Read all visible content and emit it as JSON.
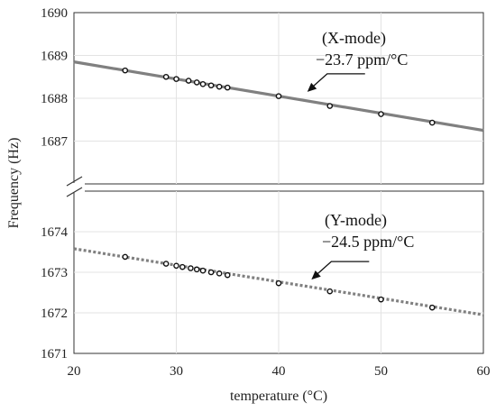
{
  "chart_data": {
    "type": "scatter",
    "xlabel": "temperature (°C)",
    "ylabel": "Frequency (Hz)",
    "xlim": [
      20,
      60
    ],
    "x_ticks": [
      20,
      30,
      40,
      50,
      60
    ],
    "x_tick_labels": [
      "20",
      "30",
      "40",
      "50",
      "60"
    ],
    "grid": true,
    "axis_break": "broken y-axis between 1687 and 1674",
    "panels": [
      {
        "ylim": [
          1686,
          1690
        ],
        "y_ticks": [
          1687,
          1688,
          1689,
          1690
        ],
        "y_tick_labels": [
          "1687",
          "1688",
          "1689",
          "1690"
        ],
        "series": {
          "fit_line": {
            "x": [
              20,
              60
            ],
            "y": [
              1688.85,
              1687.25
            ],
            "style": "solid",
            "color": "#808080"
          },
          "points": {
            "x": [
              25,
              29,
              30,
              31.2,
              32,
              32.6,
              33.4,
              34.2,
              35,
              40,
              45,
              50,
              55
            ],
            "y": [
              1688.65,
              1688.5,
              1688.45,
              1688.41,
              1688.37,
              1688.33,
              1688.3,
              1688.27,
              1688.25,
              1688.05,
              1687.82,
              1687.63,
              1687.43
            ],
            "color": "#111111"
          }
        },
        "annotation": {
          "title": "(X-mode)",
          "value": "−23.7 ppm/°C",
          "arrow_to": [
            42.8,
            1688.15
          ]
        }
      },
      {
        "ylim": [
          1671,
          1675
        ],
        "y_ticks": [
          1671,
          1672,
          1673,
          1674
        ],
        "y_tick_labels": [
          "1671",
          "1672",
          "1673",
          "1674"
        ],
        "series": {
          "fit_line": {
            "x": [
              20,
              60
            ],
            "y": [
              1673.58,
              1671.95
            ],
            "style": "dotted",
            "color": "#808080"
          },
          "points": {
            "x": [
              25,
              29,
              30,
              30.6,
              31.4,
              32,
              32.6,
              33.4,
              34.2,
              35,
              40,
              45,
              50,
              55
            ],
            "y": [
              1673.38,
              1673.21,
              1673.16,
              1673.13,
              1673.1,
              1673.07,
              1673.04,
              1673.0,
              1672.97,
              1672.93,
              1672.73,
              1672.53,
              1672.33,
              1672.13
            ],
            "color": "#111111"
          }
        },
        "annotation": {
          "title": "(Y-mode)",
          "value": "−24.5 ppm/°C",
          "arrow_to": [
            43.2,
            1672.82
          ]
        }
      }
    ]
  }
}
